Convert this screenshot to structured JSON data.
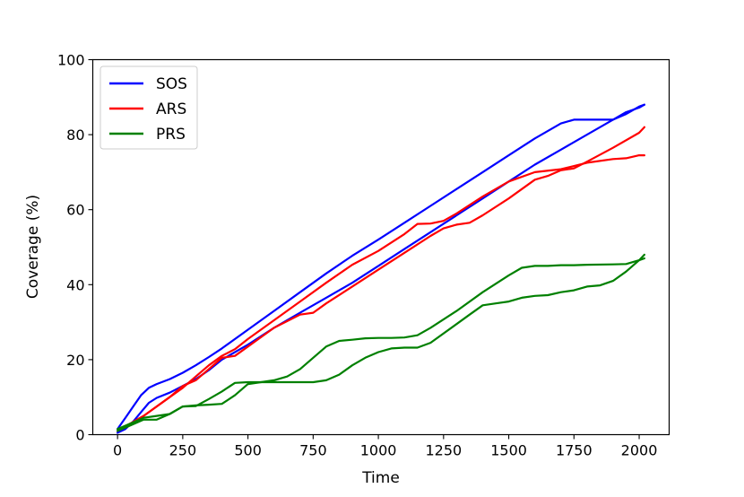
{
  "chart_data": {
    "type": "line",
    "xlabel": "Time",
    "ylabel": "Coverage (%)",
    "xlim": [
      -95,
      2115
    ],
    "ylim": [
      0,
      100
    ],
    "xticks": [
      0,
      250,
      500,
      750,
      1000,
      1250,
      1500,
      1750,
      2000
    ],
    "yticks": [
      0,
      20,
      40,
      60,
      80,
      100
    ],
    "grid": false,
    "legend_position": "upper-left",
    "series": [
      {
        "name": "SOS",
        "color": "#0000ff",
        "lines": [
          {
            "x": [
              0,
              30,
              60,
              90,
              120,
              150,
              200,
              250,
              300,
              350,
              400,
              500,
              600,
              700,
              800,
              900,
              1000,
              1100,
              1200,
              1300,
              1400,
              1500,
              1600,
              1700,
              1750,
              1800,
              1900,
              1950,
              2000,
              2020
            ],
            "y": [
              1.5,
              4.5,
              7.5,
              10.5,
              12.5,
              13.5,
              14.8,
              16.5,
              18.5,
              20.7,
              23,
              28,
              33,
              38,
              43,
              47.7,
              52,
              56.5,
              61,
              65.5,
              70,
              74.5,
              79,
              83,
              84,
              84,
              84,
              85.5,
              87.5,
              88
            ]
          },
          {
            "x": [
              0,
              30,
              60,
              90,
              120,
              150,
              200,
              250,
              300,
              350,
              400,
              500,
              600,
              700,
              800,
              900,
              1000,
              1100,
              1200,
              1300,
              1400,
              1500,
              1600,
              1700,
              1800,
              1900,
              1950,
              2000,
              2020
            ],
            "y": [
              0.5,
              1.5,
              3.5,
              6,
              8.5,
              9.8,
              11.2,
              13,
              14.8,
              17.2,
              20,
              24,
              28.5,
              32.5,
              36.5,
              40.5,
              45,
              49.5,
              54,
              58.5,
              63,
              67.5,
              72,
              76,
              80,
              84,
              86,
              87.2,
              88
            ]
          }
        ]
      },
      {
        "name": "ARS",
        "color": "#ff0000",
        "lines": [
          {
            "x": [
              0,
              50,
              100,
              150,
              200,
              250,
              300,
              350,
              400,
              450,
              500,
              600,
              700,
              800,
              900,
              1000,
              1100,
              1150,
              1200,
              1250,
              1300,
              1400,
              1500,
              1600,
              1700,
              1800,
              1900,
              1950,
              2000,
              2020
            ],
            "y": [
              1,
              3,
              5,
              7.5,
              10,
              12.5,
              15.5,
              18.5,
              21,
              22.8,
              25.5,
              30.5,
              35.5,
              40.5,
              45.3,
              49,
              53.5,
              56.2,
              56.3,
              57,
              59,
              63.5,
              67.5,
              70,
              70.8,
              72.5,
              73.5,
              73.7,
              74.5,
              74.5
            ]
          },
          {
            "x": [
              0,
              50,
              100,
              150,
              200,
              250,
              300,
              350,
              400,
              450,
              500,
              600,
              700,
              750,
              800,
              900,
              1000,
              1100,
              1200,
              1250,
              1300,
              1350,
              1400,
              1500,
              1600,
              1650,
              1700,
              1750,
              1800,
              1900,
              2000,
              2020
            ],
            "y": [
              1,
              3,
              5,
              7.5,
              10,
              13,
              14.5,
              17.5,
              20.5,
              21,
              23.5,
              28.5,
              32,
              32.5,
              35,
              39.5,
              44,
              48.5,
              53,
              55,
              56,
              56.5,
              58.5,
              63,
              68,
              69,
              70.5,
              71,
              72.8,
              76.5,
              80.5,
              82
            ]
          }
        ]
      },
      {
        "name": "PRS",
        "color": "#008000",
        "lines": [
          {
            "x": [
              0,
              50,
              100,
              150,
              200,
              250,
              300,
              350,
              400,
              450,
              500,
              550,
              600,
              650,
              700,
              750,
              800,
              850,
              900,
              950,
              1000,
              1050,
              1100,
              1150,
              1200,
              1300,
              1400,
              1500,
              1550,
              1600,
              1650,
              1700,
              1750,
              1800,
              1900,
              1950,
              2000,
              2020
            ],
            "y": [
              1.5,
              3,
              4.5,
              5,
              5.5,
              7.5,
              7.8,
              8,
              8.2,
              10.5,
              13.5,
              14,
              14.5,
              15.5,
              17.5,
              20.5,
              23.5,
              25,
              25.3,
              25.7,
              25.8,
              25.8,
              25.9,
              26.5,
              28.5,
              33,
              38,
              42.5,
              44.5,
              45,
              45,
              45.2,
              45.2,
              45.3,
              45.4,
              45.5,
              46.5,
              47
            ]
          },
          {
            "x": [
              0,
              50,
              100,
              150,
              200,
              250,
              300,
              350,
              400,
              450,
              500,
              550,
              600,
              650,
              700,
              750,
              800,
              850,
              900,
              950,
              1000,
              1050,
              1100,
              1150,
              1200,
              1300,
              1350,
              1400,
              1450,
              1500,
              1550,
              1600,
              1650,
              1700,
              1750,
              1800,
              1850,
              1900,
              1950,
              2000,
              2020
            ],
            "y": [
              1,
              2.5,
              4,
              4,
              5.5,
              7.5,
              7.6,
              9.5,
              11.5,
              13.8,
              14,
              14,
              14,
              14,
              14,
              14,
              14.5,
              16,
              18.5,
              20.5,
              22,
              23,
              23.2,
              23.2,
              24.5,
              29.5,
              32,
              34.5,
              35,
              35.5,
              36.5,
              37,
              37.2,
              38,
              38.5,
              39.5,
              39.8,
              41,
              43.5,
              46.5,
              48
            ]
          }
        ]
      }
    ]
  }
}
